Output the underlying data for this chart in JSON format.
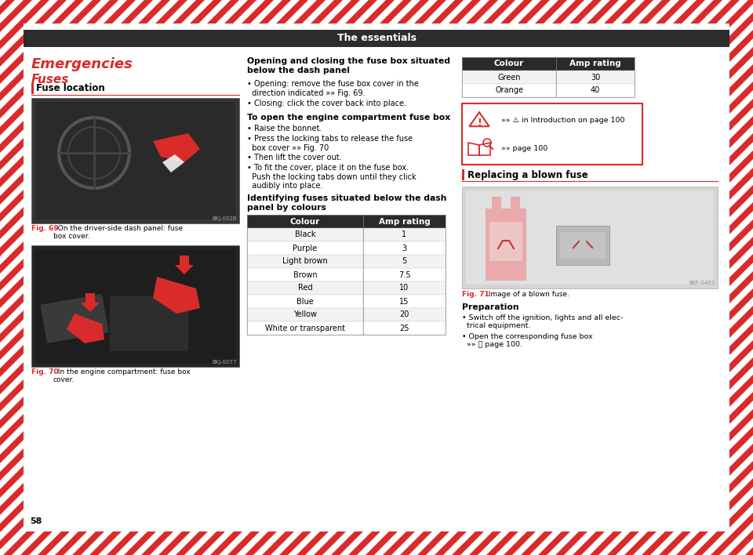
{
  "title": "The essentials",
  "title_bg": "#2d2d2d",
  "title_color": "#ffffff",
  "bg_color": "#ffffff",
  "stripe_color": "#d92b2b",
  "page_number": "58",
  "section_title": "Emergencies",
  "section_subtitle": "Fuses",
  "fuse_location_header": "Fuse location",
  "fig69_caption_bold": "Fig. 69",
  "fig69_caption_rest": "  On the driver-side dash panel: fuse\nbox cover.",
  "fig70_caption_bold": "Fig. 70",
  "fig70_caption_rest": "  In the engine compartment: fuse box\ncover.",
  "middle_col_heading": "Opening and closing the fuse box situated\nbelow the dash panel",
  "middle_bullets": [
    "• Opening: remove the fuse box cover in the\n  direction indicated »» Fig. 69.",
    "• Closing: click the cover back into place."
  ],
  "engine_heading": "To open the engine compartment fuse box",
  "engine_bullets": [
    "• Raise the bonnet.",
    "• Press the locking tabs to release the fuse\n  box cover »» Fig. 70",
    "• Then lift the cover out.",
    "• To fit the cover, place it on the fuse box.\n  Push the locking tabs down until they click\n  audibly into place."
  ],
  "identify_heading": "Identifying fuses situated below the dash\npanel by colours",
  "table1_headers": [
    "Colour",
    "Amp rating"
  ],
  "table1_rows": [
    [
      "Black",
      "1"
    ],
    [
      "Purple",
      "3"
    ],
    [
      "Light brown",
      "5"
    ],
    [
      "Brown",
      "7.5"
    ],
    [
      "Red",
      "10"
    ],
    [
      "Blue",
      "15"
    ],
    [
      "Yellow",
      "20"
    ],
    [
      "White or transparent",
      "25"
    ]
  ],
  "table2_headers": [
    "Colour",
    "Amp rating"
  ],
  "table2_rows": [
    [
      "Green",
      "30"
    ],
    [
      "Orange",
      "40"
    ]
  ],
  "warn_text": "»» ⚠ in Introduction on page 100",
  "info_text": "»» page 100",
  "replacing_header": "Replacing a blown fuse",
  "fig71_caption_bold": "Fig. 71",
  "fig71_caption_rest": "  Image of a blown fuse.",
  "preparation_heading": "Preparation",
  "prep_bullets": [
    "• Switch off the ignition, lights and all elec-\n  trical equipment.",
    "• Open the corresponding fuse box\n  »» 📖 page 100."
  ],
  "header_table_bg": "#2a2a2a",
  "row_alt_bg": "#f2f2f2",
  "row_white_bg": "#ffffff",
  "red_color": "#d92b2b",
  "fig69_id": "BKJ-002B",
  "fig70_id": "BKJ-0077",
  "fig71_id": "BSF-0453"
}
